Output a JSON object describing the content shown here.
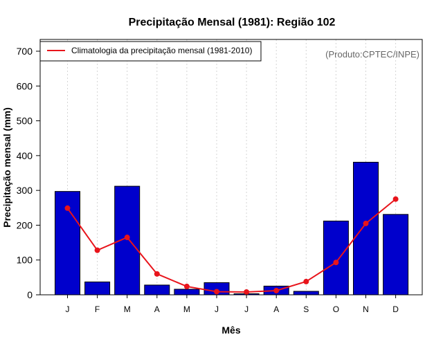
{
  "chart_data": {
    "type": "bar",
    "title": "Precipitação Mensal (1981): Região 102",
    "xlabel": "Mês",
    "ylabel": "Precipitação mensal (mm)",
    "categories": [
      "J",
      "F",
      "M",
      "A",
      "M",
      "J",
      "J",
      "A",
      "S",
      "O",
      "N",
      "D"
    ],
    "ylim": [
      0,
      700
    ],
    "yticks": [
      0,
      100,
      200,
      300,
      400,
      500,
      600,
      700
    ],
    "series": [
      {
        "name": "Precipitação mensal (1981)",
        "type": "bar",
        "color": "#0000CC",
        "values": [
          297,
          37,
          312,
          28,
          16,
          35,
          3,
          25,
          10,
          212,
          381,
          231
        ]
      },
      {
        "name": "Climatologia da precipitação mensal (1981-2010)",
        "type": "line",
        "color": "#E8141B",
        "values": [
          249,
          128,
          165,
          60,
          24,
          9,
          8,
          12,
          38,
          93,
          205,
          275
        ]
      }
    ],
    "legend": {
      "position": "top-left",
      "entries": [
        "Climatologia da precipitação mensal (1981-2010)"
      ]
    },
    "annotation": "(Produto:CPTEC/INPE)",
    "grid": "vertical dotted"
  }
}
